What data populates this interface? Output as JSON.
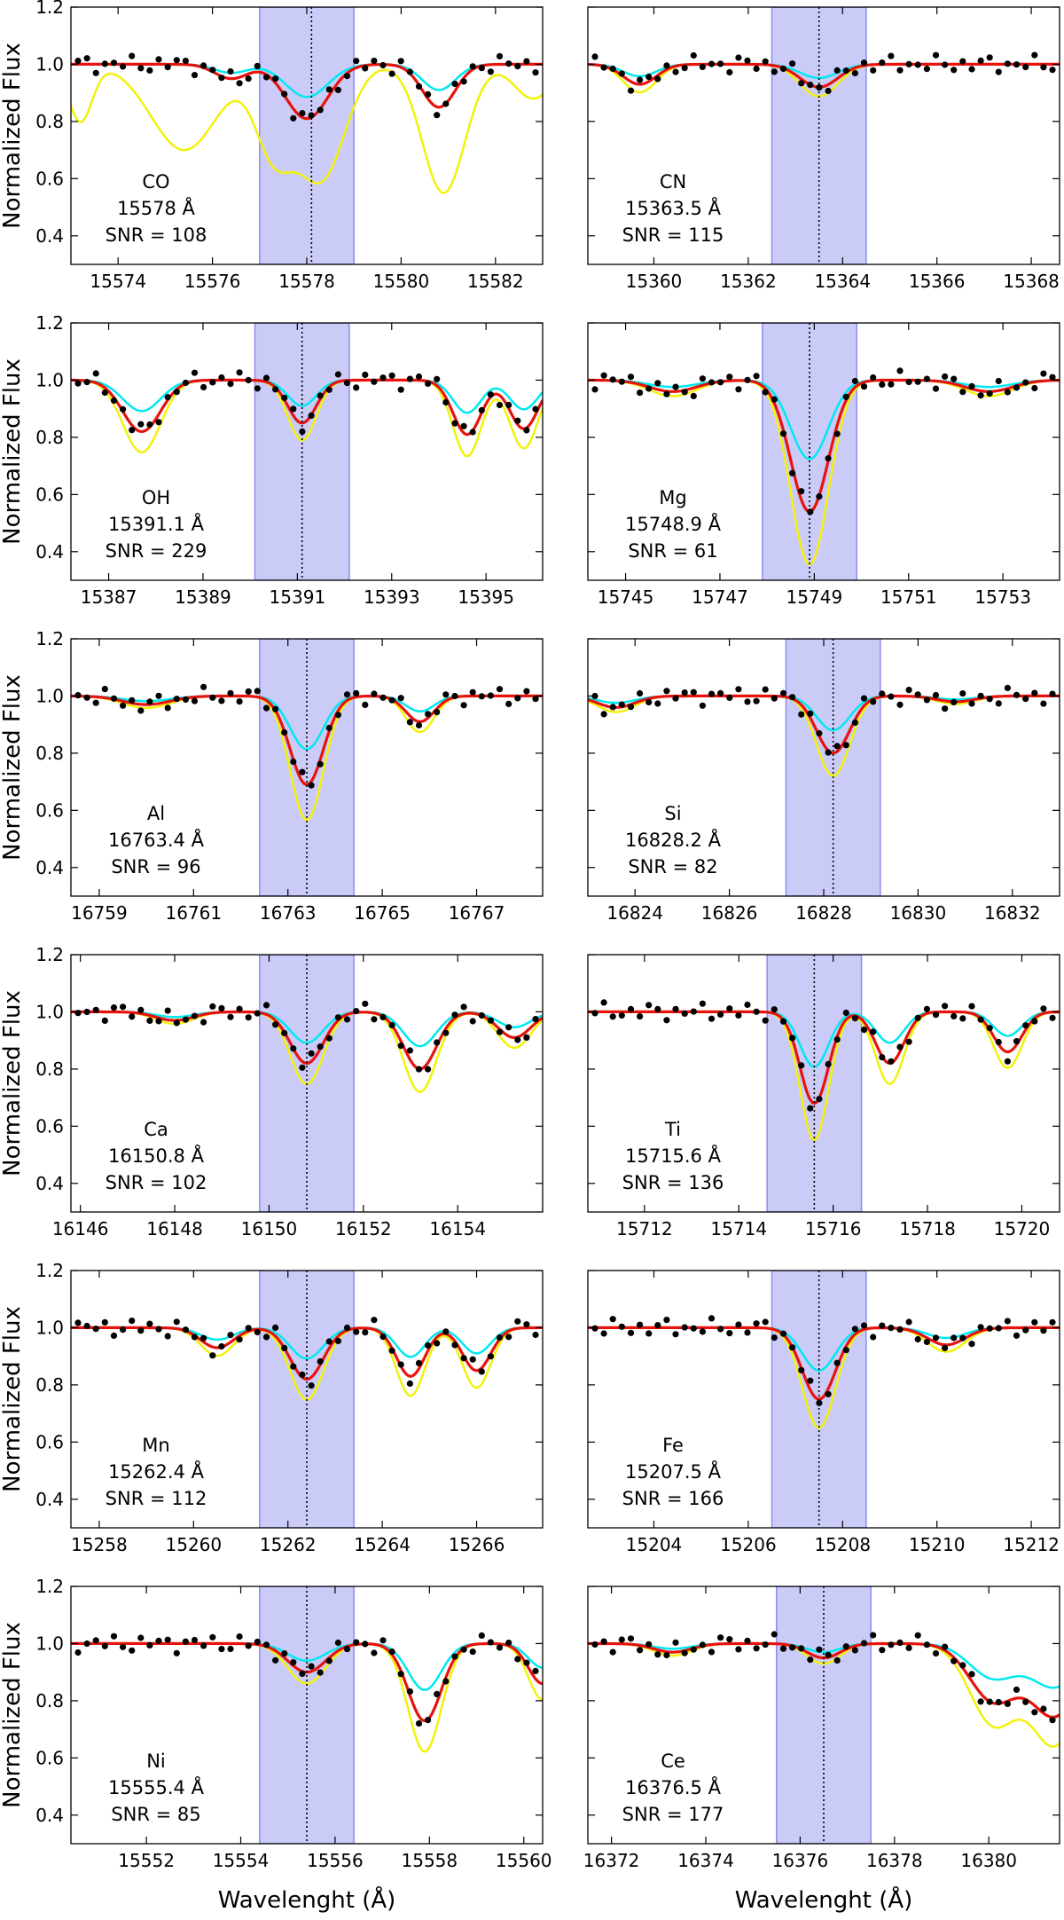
{
  "chart_data": {
    "type": "line",
    "title": "",
    "xlabel": "Wavelenght (Å)",
    "ylabel": "Normalized Flux",
    "ylim": [
      0.3,
      1.2
    ],
    "yticks": [
      0.4,
      0.6,
      0.8,
      1.0,
      1.2
    ],
    "ytick_labels": [
      "0.4",
      "0.6",
      "0.8",
      "1.0",
      "1.2"
    ],
    "grid": false,
    "legend": "none",
    "series_colors": {
      "observed": "#000000",
      "best_fit": "#e8120c",
      "lower_abundance": "#00e8f0",
      "higher_abundance": "#f2f20a",
      "window": "#8c8cf0",
      "line_center": "#000000"
    },
    "panels": [
      {
        "label": "CO",
        "wavelength": "15578 Å",
        "snr": "SNR = 108",
        "xlim": [
          15573,
          15583
        ],
        "xticks": [
          "15574",
          "15576",
          "15578",
          "15580",
          "15582"
        ],
        "center": 15578.1,
        "window": [
          15577.0,
          15579.0
        ],
        "lines": [
          {
            "center": 15576.4,
            "depth": 0.05,
            "sigma": 0.35
          },
          {
            "center": 15578.0,
            "depth": 0.19,
            "sigma": 0.45
          },
          {
            "center": 15580.8,
            "depth": 0.15,
            "sigma": 0.35
          }
        ],
        "yellow_lines": [
          {
            "center": 15573.2,
            "depth": 0.2,
            "sigma": 0.25
          },
          {
            "center": 15575.4,
            "depth": 0.3,
            "sigma": 0.7
          },
          {
            "center": 15577.3,
            "depth": 0.3,
            "sigma": 0.4
          },
          {
            "center": 15578.3,
            "depth": 0.4,
            "sigma": 0.5
          },
          {
            "center": 15580.9,
            "depth": 0.45,
            "sigma": 0.45
          },
          {
            "center": 15582.8,
            "depth": 0.12,
            "sigma": 0.4
          }
        ]
      },
      {
        "label": "CN",
        "wavelength": "15363.5 Å",
        "snr": "SNR = 115",
        "xlim": [
          15358.6,
          15368.6
        ],
        "xticks": [
          "15360",
          "15362",
          "15364",
          "15366",
          "15368"
        ],
        "center": 15363.5,
        "window": [
          15362.5,
          15364.5
        ],
        "lines": [
          {
            "center": 15359.7,
            "depth": 0.07,
            "sigma": 0.35
          },
          {
            "center": 15363.5,
            "depth": 0.08,
            "sigma": 0.4
          }
        ]
      },
      {
        "label": "OH",
        "wavelength": "15391.1  Å",
        "snr": "SNR = 229",
        "xlim": [
          15386.2,
          15396.2
        ],
        "xticks": [
          "15387",
          "15389",
          "15391",
          "15393",
          "15395"
        ],
        "center": 15391.1,
        "window": [
          15390.1,
          15392.1
        ],
        "lines": [
          {
            "center": 15387.7,
            "depth": 0.18,
            "sigma": 0.4
          },
          {
            "center": 15391.1,
            "depth": 0.15,
            "sigma": 0.3
          },
          {
            "center": 15394.6,
            "depth": 0.19,
            "sigma": 0.3
          },
          {
            "center": 15395.8,
            "depth": 0.17,
            "sigma": 0.3
          }
        ]
      },
      {
        "label": "Mg",
        "wavelength": "15748.9  Å",
        "snr": "SNR = 61",
        "xlim": [
          15744.2,
          15754.2
        ],
        "xticks": [
          "15745",
          "15747",
          "15749",
          "15751",
          "15753"
        ],
        "center": 15748.9,
        "window": [
          15747.9,
          15749.9
        ],
        "lines": [
          {
            "center": 15746.0,
            "depth": 0.04,
            "sigma": 0.5
          },
          {
            "center": 15748.9,
            "depth": 0.46,
            "sigma": 0.4
          },
          {
            "center": 15752.7,
            "depth": 0.04,
            "sigma": 0.5
          }
        ]
      },
      {
        "label": "Al",
        "wavelength": "16763.4 Å",
        "snr": "SNR = 96",
        "xlim": [
          16758.4,
          16768.4
        ],
        "xticks": [
          "16759",
          "16761",
          "16763",
          "16765",
          "16767"
        ],
        "center": 16763.4,
        "window": [
          16762.4,
          16764.4
        ],
        "lines": [
          {
            "center": 16760.0,
            "depth": 0.03,
            "sigma": 0.5
          },
          {
            "center": 16763.4,
            "depth": 0.31,
            "sigma": 0.35
          },
          {
            "center": 16765.8,
            "depth": 0.09,
            "sigma": 0.3
          }
        ]
      },
      {
        "label": "Si",
        "wavelength": "16828.2 Å",
        "snr": "SNR = 82",
        "xlim": [
          16823.0,
          16833.0
        ],
        "xticks": [
          "16824",
          "16826",
          "16828",
          "16830",
          "16832"
        ],
        "center": 16828.2,
        "window": [
          16827.2,
          16829.2
        ],
        "lines": [
          {
            "center": 16823.6,
            "depth": 0.04,
            "sigma": 0.4
          },
          {
            "center": 16828.2,
            "depth": 0.2,
            "sigma": 0.35
          },
          {
            "center": 16830.8,
            "depth": 0.02,
            "sigma": 0.4
          }
        ]
      },
      {
        "label": "Ca",
        "wavelength": "16150.8 Å",
        "snr": "SNR = 102",
        "xlim": [
          16145.8,
          16155.8
        ],
        "xticks": [
          "16146",
          "16148",
          "16150",
          "16152",
          "16154"
        ],
        "center": 16150.8,
        "window": [
          16149.8,
          16151.8
        ],
        "lines": [
          {
            "center": 16148.0,
            "depth": 0.03,
            "sigma": 0.4
          },
          {
            "center": 16150.8,
            "depth": 0.18,
            "sigma": 0.35
          },
          {
            "center": 16153.2,
            "depth": 0.2,
            "sigma": 0.35
          },
          {
            "center": 16155.2,
            "depth": 0.09,
            "sigma": 0.35
          }
        ]
      },
      {
        "label": "Ti",
        "wavelength": "15715.6 Å",
        "snr": "SNR = 136",
        "xlim": [
          15710.8,
          15720.8
        ],
        "xticks": [
          "15712",
          "15714",
          "15716",
          "15718",
          "15720"
        ],
        "center": 15715.6,
        "window": [
          15714.6,
          15716.6
        ],
        "lines": [
          {
            "center": 15715.6,
            "depth": 0.32,
            "sigma": 0.3
          },
          {
            "center": 15717.2,
            "depth": 0.18,
            "sigma": 0.3
          },
          {
            "center": 15719.7,
            "depth": 0.14,
            "sigma": 0.3
          }
        ]
      },
      {
        "label": "Mn",
        "wavelength": "15262.4 Å",
        "snr": "SNR = 112",
        "xlim": [
          15257.4,
          15267.4
        ],
        "xticks": [
          "15258",
          "15260",
          "15262",
          "15264",
          "15266"
        ],
        "center": 15262.4,
        "window": [
          15261.4,
          15263.4
        ],
        "lines": [
          {
            "center": 15260.5,
            "depth": 0.07,
            "sigma": 0.35
          },
          {
            "center": 15262.4,
            "depth": 0.18,
            "sigma": 0.35
          },
          {
            "center": 15264.6,
            "depth": 0.17,
            "sigma": 0.3
          },
          {
            "center": 15266.0,
            "depth": 0.15,
            "sigma": 0.3
          }
        ]
      },
      {
        "label": "Fe",
        "wavelength": "15207.5 Å",
        "snr": "SNR = 166",
        "xlim": [
          15202.6,
          15212.6
        ],
        "xticks": [
          "15204",
          "15206",
          "15208",
          "15210",
          "15212"
        ],
        "center": 15207.5,
        "window": [
          15206.5,
          15208.5
        ],
        "lines": [
          {
            "center": 15207.5,
            "depth": 0.25,
            "sigma": 0.35
          },
          {
            "center": 15210.2,
            "depth": 0.06,
            "sigma": 0.4
          }
        ]
      },
      {
        "label": "Ni",
        "wavelength": "15555.4 Å",
        "snr": "SNR = 85",
        "xlim": [
          15550.4,
          15560.4
        ],
        "xticks": [
          "15552",
          "15554",
          "15556",
          "15558",
          "15560"
        ],
        "center": 15555.4,
        "window": [
          15554.4,
          15556.4
        ],
        "lines": [
          {
            "center": 15555.4,
            "depth": 0.1,
            "sigma": 0.4
          },
          {
            "center": 15557.9,
            "depth": 0.27,
            "sigma": 0.35
          },
          {
            "center": 15560.4,
            "depth": 0.14,
            "sigma": 0.3
          }
        ]
      },
      {
        "label": "Ce",
        "wavelength": "16376.5 Å",
        "snr": "SNR = 177",
        "xlim": [
          16371.5,
          16381.5
        ],
        "xticks": [
          "16372",
          "16374",
          "16376",
          "16378",
          "16380"
        ],
        "center": 16376.5,
        "window": [
          16375.5,
          16377.5
        ],
        "lines": [
          {
            "center": 16373.3,
            "depth": 0.03,
            "sigma": 0.4
          },
          {
            "center": 16376.5,
            "depth": 0.05,
            "sigma": 0.35
          },
          {
            "center": 16380.1,
            "depth": 0.2,
            "sigma": 0.5
          },
          {
            "center": 16381.4,
            "depth": 0.25,
            "sigma": 0.5
          }
        ]
      }
    ]
  }
}
